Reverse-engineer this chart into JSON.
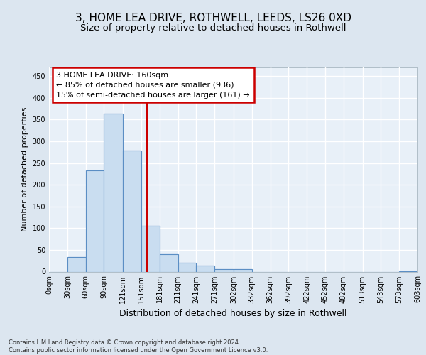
{
  "title1": "3, HOME LEA DRIVE, ROTHWELL, LEEDS, LS26 0XD",
  "title2": "Size of property relative to detached houses in Rothwell",
  "xlabel": "Distribution of detached houses by size in Rothwell",
  "ylabel": "Number of detached properties",
  "footnote": "Contains HM Land Registry data © Crown copyright and database right 2024.\nContains public sector information licensed under the Open Government Licence v3.0.",
  "bin_edges": [
    0,
    30,
    60,
    90,
    121,
    151,
    181,
    211,
    241,
    271,
    302,
    332,
    362,
    392,
    422,
    452,
    482,
    513,
    543,
    573,
    603
  ],
  "bar_heights": [
    0,
    33,
    233,
    363,
    278,
    105,
    40,
    20,
    14,
    6,
    5,
    0,
    0,
    0,
    0,
    0,
    0,
    0,
    0,
    1
  ],
  "bar_color": "#c9ddf0",
  "bar_edgecolor": "#5b8ec4",
  "vline_x": 160,
  "vline_color": "#cc0000",
  "annotation_text": "3 HOME LEA DRIVE: 160sqm\n← 85% of detached houses are smaller (936)\n15% of semi-detached houses are larger (161) →",
  "annotation_box_color": "#ffffff",
  "annotation_box_edgecolor": "#cc0000",
  "ylim": [
    0,
    470
  ],
  "xlim": [
    0,
    603
  ],
  "bg_color": "#dce6f0",
  "plot_bg_color": "#e8f0f8",
  "grid_color": "#ffffff",
  "title1_fontsize": 11,
  "title2_fontsize": 9.5,
  "ylabel_fontsize": 8,
  "xlabel_fontsize": 9,
  "tick_fontsize": 7,
  "annot_fontsize": 8,
  "footnote_fontsize": 6,
  "tick_labels": [
    "0sqm",
    "30sqm",
    "60sqm",
    "90sqm",
    "121sqm",
    "151sqm",
    "181sqm",
    "211sqm",
    "241sqm",
    "271sqm",
    "302sqm",
    "332sqm",
    "362sqm",
    "392sqm",
    "422sqm",
    "452sqm",
    "482sqm",
    "513sqm",
    "543sqm",
    "573sqm",
    "603sqm"
  ]
}
